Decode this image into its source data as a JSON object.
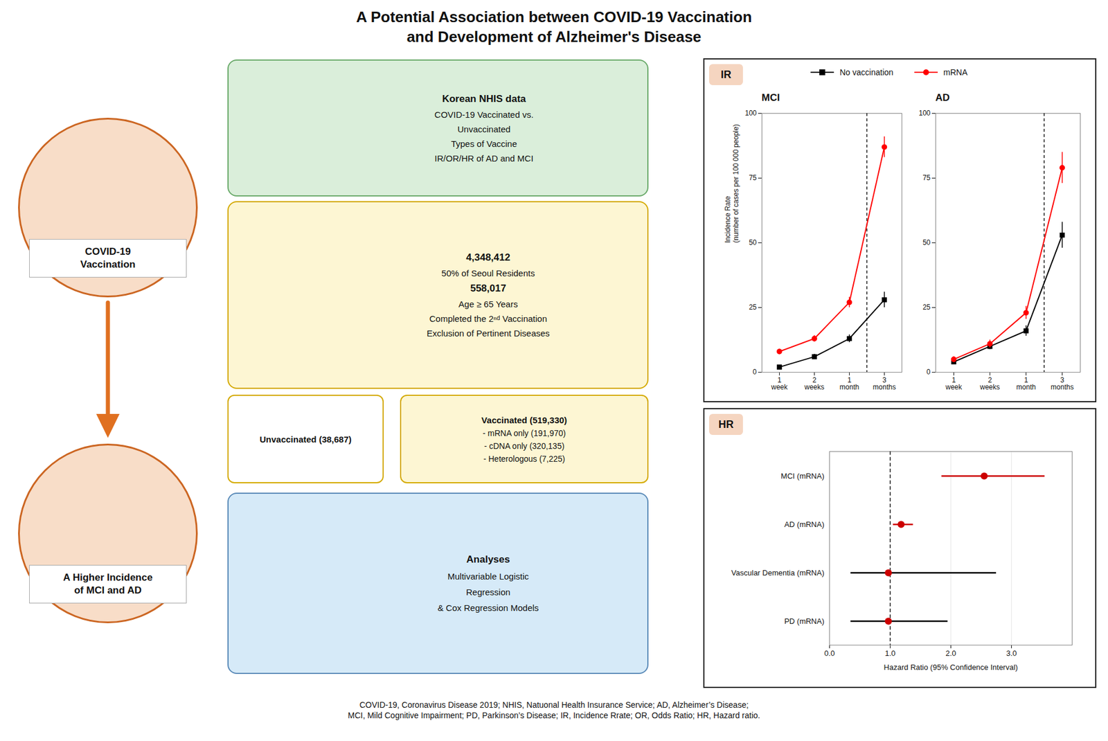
{
  "title": "A Potential Association between COVID-19 Vaccination\nand Development of Alzheimer's Disease",
  "annotations": [
    [
      "COVID-19",
      "Vaccination"
    ],
    [
      "A Higher Incidence",
      "of MCI and AD"
    ],
    [
      "Korean NHIS data",
      "COVID-19 Vaccinated vs.",
      "Unvaccinated",
      "Types of Vaccine",
      "IR/OR/HR of AD and MCI"
    ],
    [
      "4,348,412",
      "50% of Seoul Residents",
      "558,017",
      "Age ≥ 65 Years",
      "Completed the 2ⁿᵈ Vaccination",
      "Exclusion of Pertinent Diseases"
    ],
    [
      "Unvaccinated (38,687)"
    ],
    [
      "Vaccinated (519,330)",
      "- mRNA only (191,970)",
      "- cDNA only (320,135)",
      "- Heterologous (7,225)"
    ],
    [
      "Analyses",
      "Multivariable Logistic",
      "Regression",
      "& Cox Regression Models"
    ],
    [
      "IR"
    ],
    [
      "HR"
    ],
    [
      "COVID-19, Coronavirus Disease 2019; NHIS, Natuonal Health Insurance Service; AD, Alzheimer’s Disease;",
      "MCI, Mild Cognitive Impairment; PD, Parkinson’s Disease; IR, Incidence Rrate; OR, Odds Ratio; HR, Hazard ratio."
    ]
  ],
  "chart_data": [
    {
      "type": "line",
      "title": "MCI",
      "categories": [
        "1\nweek",
        "2\nweeks",
        "1\nmonth",
        "3\nmonths"
      ],
      "ylabel": "Incidence Rate\n(number of cases per 100 000 people)",
      "ylim": [
        0,
        100
      ],
      "yticks": [
        0,
        25,
        50,
        75,
        100
      ],
      "legend": "top",
      "series": [
        {
          "name": "No vaccination",
          "color": "black",
          "marker": "square",
          "values": [
            2,
            6,
            13,
            28
          ],
          "errors": [
            0.5,
            1.0,
            1.5,
            3.0
          ]
        },
        {
          "name": "mRNA",
          "color": "red",
          "marker": "circle",
          "values": [
            8,
            13,
            27,
            87
          ],
          "errors": [
            1.0,
            1.2,
            2.0,
            4.0
          ]
        }
      ]
    },
    {
      "type": "line",
      "title": "AD",
      "categories": [
        "1\nweek",
        "2\nweeks",
        "1\nmonth",
        "3\nmonths"
      ],
      "ylim": [
        0,
        100
      ],
      "yticks": [
        0,
        25,
        50,
        75,
        100
      ],
      "series": [
        {
          "name": "No vaccination",
          "color": "black",
          "marker": "square",
          "values": [
            4,
            10,
            16,
            53
          ],
          "errors": [
            0.8,
            1.2,
            2.0,
            5.0
          ]
        },
        {
          "name": "mRNA",
          "color": "red",
          "marker": "circle",
          "values": [
            5,
            11,
            23,
            79
          ],
          "errors": [
            1.0,
            1.5,
            2.5,
            6.0
          ]
        }
      ]
    },
    {
      "type": "forest",
      "categories": [
        "MCI (mRNA)",
        "AD (mRNA)",
        "Vascular Dementia (mRNA)",
        "PD (mRNA)"
      ],
      "values": [
        2.55,
        1.18,
        0.97,
        0.97
      ],
      "ci_low": [
        1.85,
        1.05,
        0.35,
        0.35
      ],
      "ci_high": [
        3.55,
        1.38,
        2.75,
        1.95
      ],
      "colors": [
        "#cc0000",
        "#cc0000",
        "#000000",
        "#000000"
      ],
      "color": "#cc0000",
      "reference": 1.0,
      "xlabel": "Hazard Ratio (95% Confidence Interval)",
      "xlim": [
        0,
        4.0
      ],
      "xticks": [
        0,
        1,
        2,
        3
      ],
      "grid": true
    }
  ]
}
